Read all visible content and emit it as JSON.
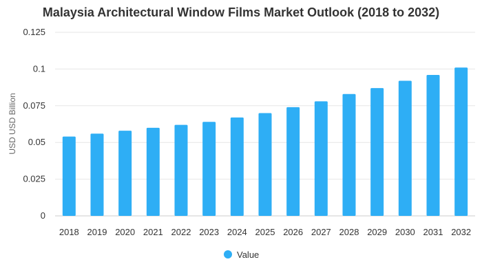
{
  "chart_data": {
    "type": "bar",
    "title": "Malaysia Architectural Window Films Market Outlook (2018 to 2032)",
    "xlabel": "",
    "ylabel": "USD USD Billion",
    "categories": [
      "2018",
      "2019",
      "2020",
      "2021",
      "2022",
      "2023",
      "2024",
      "2025",
      "2026",
      "2027",
      "2028",
      "2029",
      "2030",
      "2031",
      "2032"
    ],
    "series": [
      {
        "name": "Value",
        "values": [
          0.054,
          0.056,
          0.058,
          0.06,
          0.062,
          0.064,
          0.067,
          0.07,
          0.074,
          0.078,
          0.083,
          0.087,
          0.092,
          0.096,
          0.101
        ]
      }
    ],
    "ylim": [
      0,
      0.125
    ],
    "yticks": [
      "0",
      "0.025",
      "0.05",
      "0.075",
      "0.1",
      "0.125"
    ],
    "grid": true,
    "legend_position": "bottom",
    "bar_color": "#2EAEF5"
  }
}
